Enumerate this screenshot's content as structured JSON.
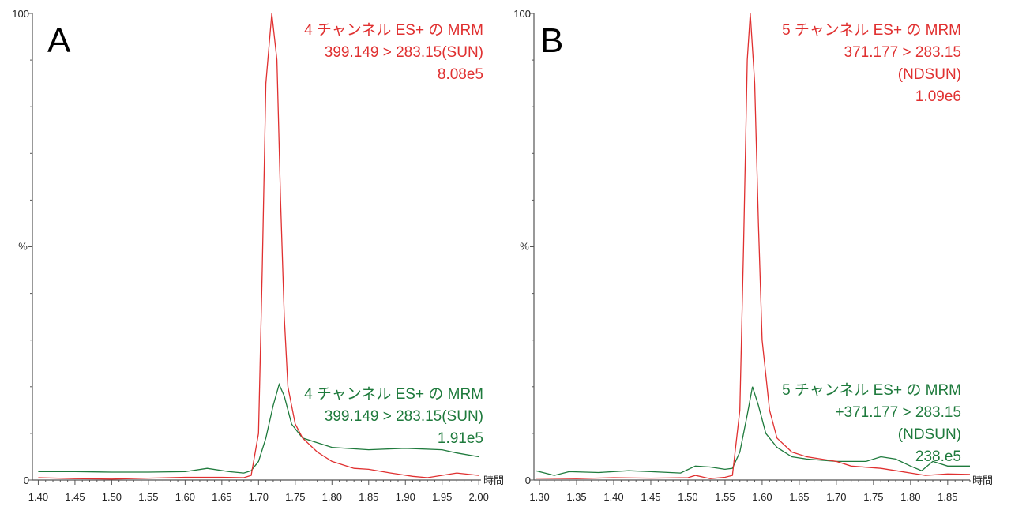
{
  "colors": {
    "red": "#e03030",
    "green": "#1e7a3c",
    "axis": "#555555"
  },
  "chart_data": [
    {
      "type": "line",
      "panel_label": "A",
      "xlabel": "時間",
      "ylabel": "%",
      "xlim": [
        1.392,
        2.003
      ],
      "ylim": [
        0,
        100
      ],
      "xticks": [
        "1.40",
        "1.45",
        "1.50",
        "1.55",
        "1.60",
        "1.65",
        "1.70",
        "1.75",
        "1.80",
        "1.85",
        "1.90",
        "1.95",
        "2.00"
      ],
      "yticks": [
        "0",
        "100"
      ],
      "series": [
        {
          "name": "red",
          "annotation": [
            "4 チャンネル ES+ の MRM",
            "399.149 > 283.15(SUN)",
            "8.08e5"
          ],
          "x": [
            1.4,
            1.45,
            1.5,
            1.55,
            1.6,
            1.65,
            1.68,
            1.69,
            1.7,
            1.705,
            1.71,
            1.718,
            1.725,
            1.73,
            1.735,
            1.74,
            1.75,
            1.76,
            1.78,
            1.8,
            1.83,
            1.85,
            1.88,
            1.91,
            1.93,
            1.97,
            2.0
          ],
          "y": [
            0.5,
            0.3,
            0.2,
            0.4,
            0.6,
            0.6,
            0.5,
            1,
            10,
            45,
            85,
            100,
            90,
            60,
            35,
            20,
            12,
            9,
            6,
            4,
            2.5,
            2.3,
            1.5,
            0.8,
            0.5,
            1.5,
            1
          ]
        },
        {
          "name": "green",
          "annotation": [
            "4 チャンネル ES+ の MRM",
            "399.149 > 283.15(SUN)",
            "1.91e5"
          ],
          "x": [
            1.4,
            1.45,
            1.5,
            1.55,
            1.6,
            1.63,
            1.66,
            1.68,
            1.69,
            1.7,
            1.71,
            1.72,
            1.728,
            1.735,
            1.745,
            1.76,
            1.78,
            1.8,
            1.85,
            1.9,
            1.95,
            1.97,
            2.0
          ],
          "y": [
            1.8,
            1.8,
            1.7,
            1.7,
            1.8,
            2.5,
            1.8,
            1.5,
            2,
            4,
            9,
            16,
            20.5,
            18,
            12,
            9,
            8,
            7,
            6.5,
            6.8,
            6.5,
            5.8,
            5
          ]
        }
      ]
    },
    {
      "type": "line",
      "panel_label": "B",
      "xlabel": "時間",
      "ylabel": "%",
      "xlim": [
        1.2925,
        1.88
      ],
      "ylim": [
        0,
        100
      ],
      "xticks": [
        "1.30",
        "1.35",
        "1.40",
        "1.45",
        "1.50",
        "1.55",
        "1.60",
        "1.65",
        "1.70",
        "1.75",
        "1.80",
        "1.85"
      ],
      "yticks": [
        "0",
        "100"
      ],
      "series": [
        {
          "name": "red",
          "annotation": [
            "5 チャンネル ES+ の MRM",
            "371.177 > 283.15",
            "(NDSUN)",
            "1.09e6"
          ],
          "x": [
            1.295,
            1.35,
            1.4,
            1.45,
            1.5,
            1.51,
            1.53,
            1.55,
            1.56,
            1.57,
            1.575,
            1.58,
            1.584,
            1.59,
            1.595,
            1.6,
            1.61,
            1.62,
            1.64,
            1.66,
            1.7,
            1.72,
            1.76,
            1.8,
            1.82,
            1.85,
            1.88
          ],
          "y": [
            0.4,
            0.3,
            0.5,
            0.4,
            0.5,
            1,
            0.3,
            0.6,
            1,
            15,
            50,
            90,
            100,
            85,
            55,
            30,
            15,
            9,
            6,
            5,
            4,
            3,
            2.5,
            1.5,
            1,
            1.3,
            1.2
          ]
        },
        {
          "name": "green",
          "annotation": [
            "5 チャンネル ES+ の MRM",
            "+371.177 > 283.15",
            "(NDSUN)",
            "238.e5"
          ],
          "x": [
            1.295,
            1.32,
            1.34,
            1.38,
            1.42,
            1.45,
            1.49,
            1.51,
            1.53,
            1.55,
            1.56,
            1.57,
            1.58,
            1.587,
            1.595,
            1.605,
            1.62,
            1.64,
            1.66,
            1.7,
            1.74,
            1.76,
            1.78,
            1.8,
            1.815,
            1.83,
            1.85,
            1.88
          ],
          "y": [
            2,
            1,
            1.8,
            1.6,
            2,
            1.8,
            1.5,
            3,
            2.8,
            2.3,
            2.5,
            6,
            14,
            20,
            16,
            10,
            7,
            5,
            4.5,
            4,
            4,
            5,
            4.5,
            3,
            2,
            4,
            3,
            3
          ]
        }
      ]
    }
  ]
}
